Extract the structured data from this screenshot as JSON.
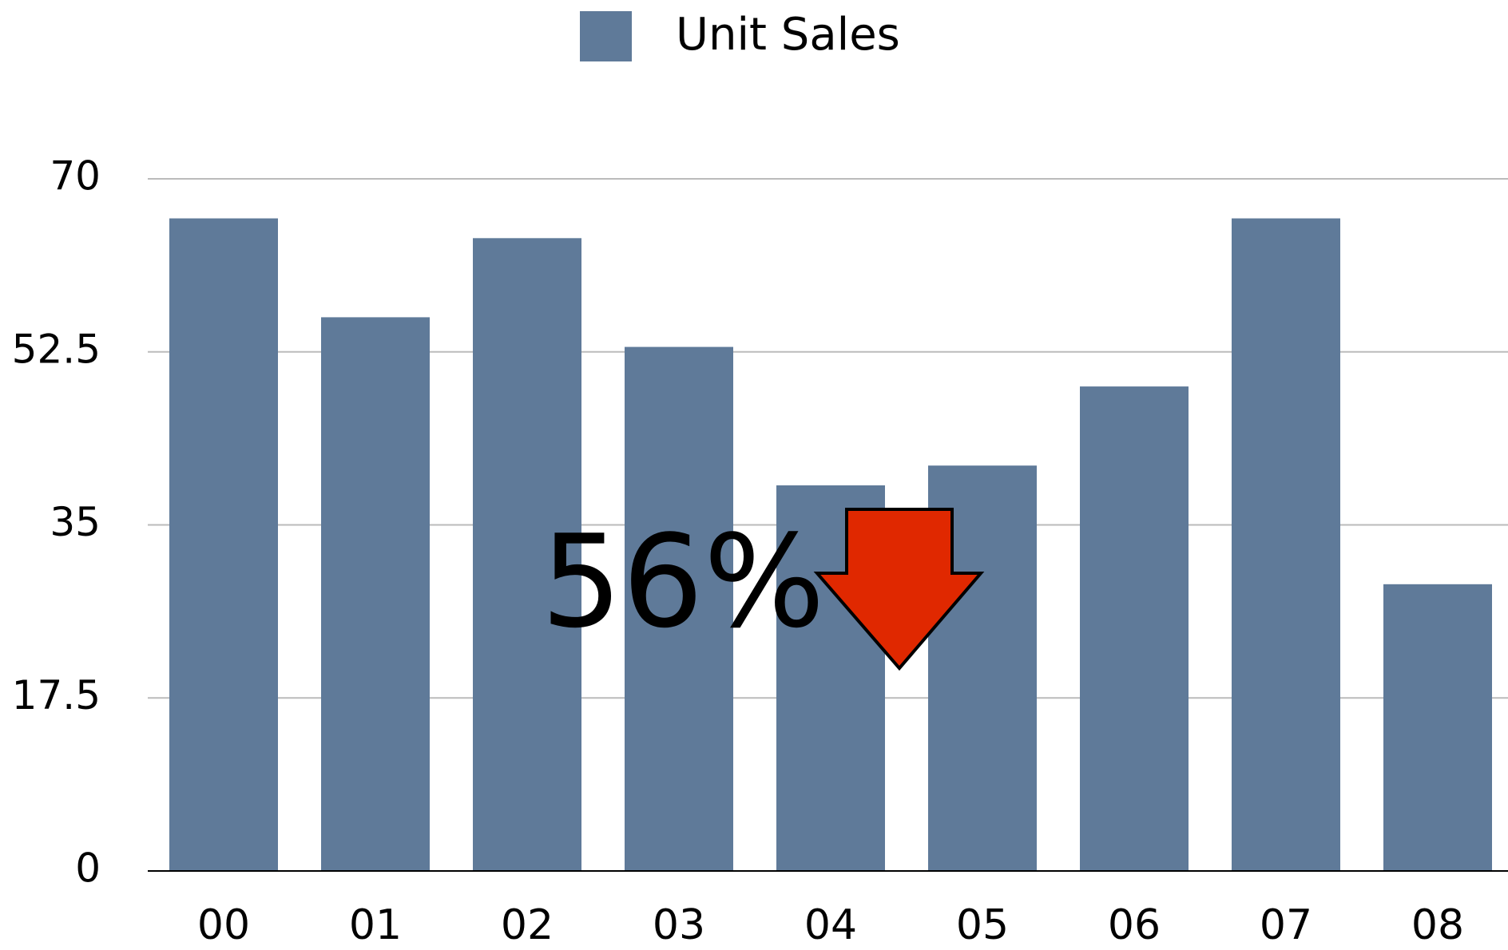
{
  "chart_data": {
    "type": "bar",
    "legend": "Unit Sales",
    "annotation": "56%",
    "categories": [
      "00",
      "01",
      "02",
      "03",
      "04",
      "05",
      "06",
      "07",
      "08"
    ],
    "series": [
      {
        "name": "Unit Sales",
        "color": "#5f7a99",
        "values": [
          66,
          56,
          64,
          53,
          39,
          41,
          49,
          66,
          29
        ]
      }
    ],
    "ylim": [
      0,
      70
    ],
    "yticks": [
      0,
      17.5,
      35,
      52.5,
      70
    ],
    "grid": true,
    "legend_position": "top"
  }
}
